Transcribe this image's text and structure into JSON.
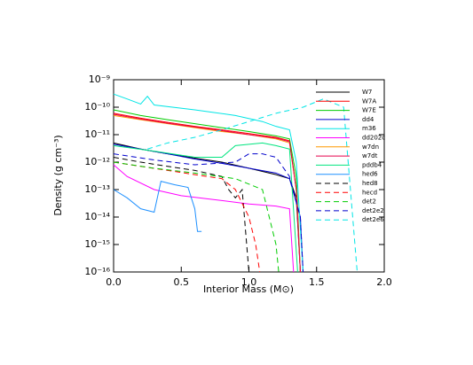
{
  "chart_data": {
    "type": "line",
    "log_y": true,
    "xlabel": "Interior Mass (M⊙)",
    "ylabel": "Density (g cm⁻³)",
    "xlim": [
      0,
      2
    ],
    "xticks": [
      {
        "value": 0,
        "label": "0.0"
      },
      0.5,
      {
        "value": 1,
        "label": "1.0"
      },
      1.5,
      {
        "value": 2,
        "label": "2.0"
      }
    ],
    "ylim": [
      1e-16,
      1e-09
    ],
    "yticks": [
      {
        "value": 1e-16,
        "label": "10⁻¹⁶"
      },
      {
        "value": 1e-15,
        "label": "10⁻¹⁵"
      },
      {
        "value": 1e-14,
        "label": "10⁻¹⁴"
      },
      {
        "value": 1e-13,
        "label": "10⁻¹³"
      },
      {
        "value": 1e-12,
        "label": "10⁻¹²"
      },
      {
        "value": 1e-11,
        "label": "10⁻¹¹"
      },
      {
        "value": 1e-10,
        "label": "10⁻¹⁰"
      },
      {
        "value": 1e-09,
        "label": "10⁻⁹"
      }
    ],
    "legend": "upper right",
    "series": [
      {
        "name": "W7",
        "color": "#000000",
        "style": "solid",
        "x": [
          0,
          0.2,
          0.4,
          0.6,
          0.8,
          1.0,
          1.2,
          1.3,
          1.35,
          1.38
        ],
        "values": [
          5e-12,
          3e-12,
          2e-12,
          1.4e-12,
          1e-12,
          6e-13,
          3.5e-13,
          2.5e-13,
          5e-14,
          1e-16
        ]
      },
      {
        "name": "W7A",
        "color": "#ff0000",
        "style": "solid",
        "x": [
          0,
          0.2,
          0.4,
          0.6,
          0.8,
          1.0,
          1.2,
          1.3,
          1.35,
          1.38
        ],
        "values": [
          6e-11,
          4e-11,
          2.8e-11,
          2e-11,
          1.5e-11,
          1.1e-11,
          8e-12,
          6e-12,
          1e-13,
          1e-16
        ]
      },
      {
        "name": "W7E",
        "color": "#00cc00",
        "style": "solid",
        "x": [
          0,
          0.2,
          0.4,
          0.6,
          0.8,
          1.0,
          1.2,
          1.3,
          1.35,
          1.38
        ],
        "values": [
          8e-11,
          5e-11,
          3.5e-11,
          2.5e-11,
          1.8e-11,
          1.3e-11,
          9e-12,
          7e-12,
          3e-13,
          1e-16
        ]
      },
      {
        "name": "dd4",
        "color": "#0000cc",
        "style": "solid",
        "x": [
          0,
          0.2,
          0.4,
          0.6,
          0.8,
          1.0,
          1.2,
          1.3,
          1.38,
          1.4
        ],
        "values": [
          4.5e-12,
          3e-12,
          2e-12,
          1.3e-12,
          9e-13,
          6e-13,
          4e-13,
          2.5e-13,
          1e-14,
          1e-16
        ]
      },
      {
        "name": "m36",
        "color": "#00e5e5",
        "style": "solid",
        "x": [
          0,
          0.1,
          0.2,
          0.25,
          0.3,
          0.6,
          0.9,
          1.1,
          1.2,
          1.3,
          1.35,
          1.4
        ],
        "values": [
          3e-10,
          2e-10,
          1.3e-10,
          2.5e-10,
          1.2e-10,
          8e-11,
          5e-11,
          3e-11,
          2e-11,
          1.5e-11,
          1e-12,
          1e-16
        ]
      },
      {
        "name": "dd202c",
        "color": "#ff00ff",
        "style": "solid",
        "x": [
          0,
          0.1,
          0.3,
          0.5,
          0.8,
          1.0,
          1.2,
          1.3,
          1.33
        ],
        "values": [
          8e-13,
          3e-13,
          1e-13,
          6e-14,
          4e-14,
          3e-14,
          2.5e-14,
          2e-14,
          1e-16
        ]
      },
      {
        "name": "w7dn",
        "color": "#ff9900",
        "style": "solid",
        "x": [
          0,
          0.2,
          0.4,
          0.6,
          0.8,
          1.0,
          1.2,
          1.3,
          1.35,
          1.38
        ],
        "values": [
          5e-11,
          3.5e-11,
          2.5e-11,
          1.8e-11,
          1.3e-11,
          1e-11,
          7e-12,
          5e-12,
          1e-13,
          1e-16
        ]
      },
      {
        "name": "w7dt",
        "color": "#e5004c",
        "style": "solid",
        "x": [
          0,
          0.2,
          0.4,
          0.6,
          0.8,
          1.0,
          1.2,
          1.3,
          1.35,
          1.38
        ],
        "values": [
          5.5e-11,
          3.7e-11,
          2.6e-11,
          1.9e-11,
          1.4e-11,
          1e-11,
          7.5e-12,
          5.5e-12,
          1e-13,
          1e-16
        ]
      },
      {
        "name": "pddb4",
        "color": "#00e57f",
        "style": "solid",
        "x": [
          0,
          0.3,
          0.6,
          0.8,
          0.9,
          1.1,
          1.2,
          1.3,
          1.36
        ],
        "values": [
          4e-12,
          2.5e-12,
          1.5e-12,
          1.5e-12,
          4e-12,
          5e-12,
          4e-12,
          3e-12,
          1e-16
        ]
      },
      {
        "name": "hed6",
        "color": "#1e90ff",
        "style": "solid",
        "x": [
          0,
          0.1,
          0.2,
          0.3,
          0.35,
          0.45,
          0.55,
          0.6,
          0.62,
          0.65
        ],
        "values": [
          1e-13,
          5e-14,
          2e-14,
          1.5e-14,
          2e-13,
          1.5e-13,
          1.2e-13,
          2e-14,
          3e-15,
          3e-15
        ]
      },
      {
        "name": "hed8",
        "color": "#000000",
        "style": "dashed",
        "x": [
          0,
          0.2,
          0.4,
          0.6,
          0.8,
          0.85,
          0.9,
          0.95,
          1.0
        ],
        "values": [
          1.5e-12,
          1e-12,
          7e-13,
          5e-13,
          3e-13,
          1e-13,
          5e-14,
          1e-13,
          1e-16
        ]
      },
      {
        "name": "hecd",
        "color": "#ff0000",
        "style": "dashed",
        "x": [
          0,
          0.2,
          0.4,
          0.6,
          0.8,
          0.9,
          1.0,
          1.05,
          1.08
        ],
        "values": [
          1e-12,
          7e-13,
          5e-13,
          3.5e-13,
          2.5e-13,
          1e-13,
          1e-14,
          1e-15,
          1e-16
        ]
      },
      {
        "name": "det2",
        "color": "#00cc00",
        "style": "dashed",
        "x": [
          0,
          0.3,
          0.6,
          0.9,
          1.1,
          1.15,
          1.2,
          1.22
        ],
        "values": [
          1e-12,
          6e-13,
          4e-13,
          2.5e-13,
          1e-13,
          1e-14,
          1e-15,
          1e-16
        ]
      },
      {
        "name": "det2e2",
        "color": "#0000cc",
        "style": "dashed",
        "x": [
          0,
          0.3,
          0.6,
          0.9,
          1.0,
          1.1,
          1.2,
          1.3,
          1.38,
          1.4
        ],
        "values": [
          2e-12,
          1.2e-12,
          8e-13,
          1e-12,
          2e-12,
          2e-12,
          1.5e-12,
          3e-13,
          1e-14,
          1e-16
        ]
      },
      {
        "name": "det2e6",
        "color": "#00e5e5",
        "style": "dashed",
        "x": [
          0.25,
          0.4,
          0.6,
          0.8,
          1.0,
          1.2,
          1.4,
          1.55,
          1.7,
          1.75,
          1.8
        ],
        "values": [
          3e-12,
          5e-12,
          8e-12,
          1.5e-11,
          3e-11,
          6e-11,
          1e-10,
          2e-10,
          1e-10,
          1e-13,
          1e-16
        ]
      }
    ]
  }
}
